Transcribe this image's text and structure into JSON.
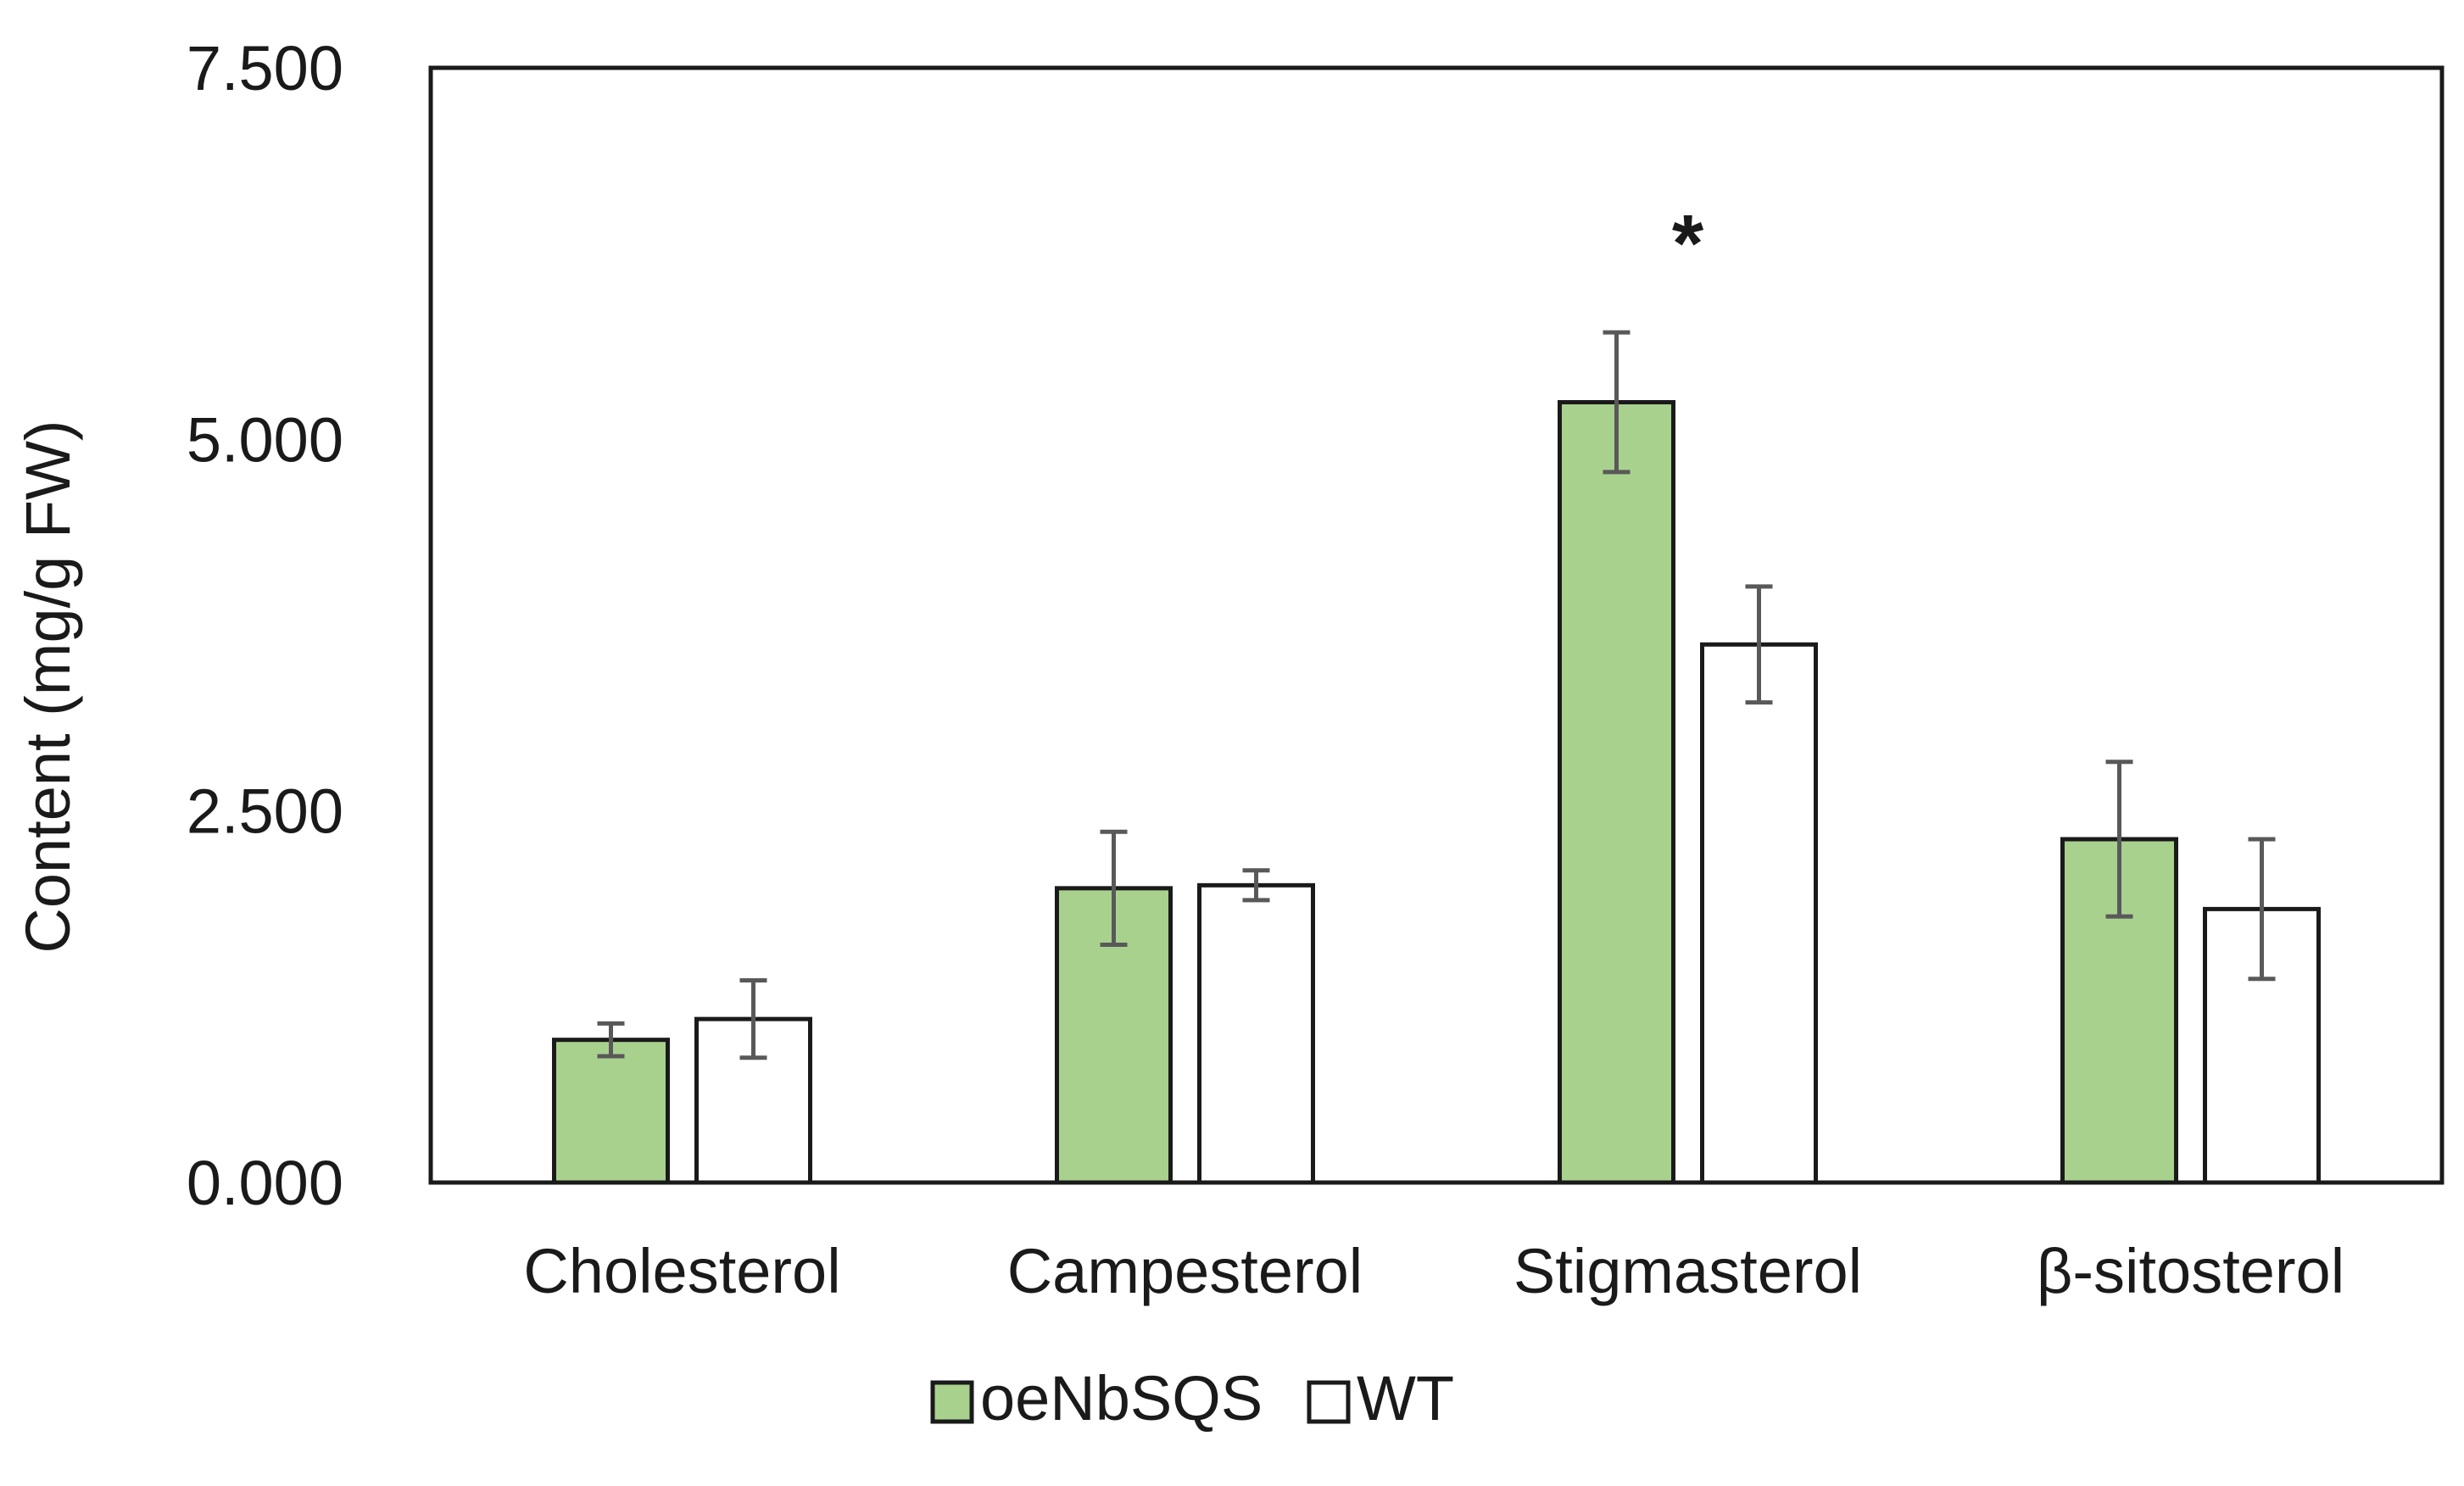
{
  "chart_data": {
    "type": "bar",
    "title": "",
    "xlabel": "",
    "ylabel": "Content (mg/g FW)",
    "ylim": [
      0,
      7.5
    ],
    "yticks": [
      0,
      2.5,
      5,
      7.5
    ],
    "ytick_labels": [
      "0.000",
      "2.500",
      "5.000",
      "7.500"
    ],
    "categories": [
      "Cholesterol",
      "Campesterol",
      "Stigmasterol",
      "β-sitosterol"
    ],
    "series": [
      {
        "name": "oeNbSQS",
        "color": "#a9d18e",
        "values": [
          0.96,
          1.98,
          5.25,
          2.31
        ],
        "errors": [
          0.11,
          0.38,
          0.47,
          0.52
        ]
      },
      {
        "name": "WT",
        "color": "#ffffff",
        "values": [
          1.1,
          2.0,
          3.62,
          1.84
        ],
        "errors": [
          0.26,
          0.1,
          0.39,
          0.47
        ]
      }
    ],
    "annotations": [
      {
        "category": "Stigmasterol",
        "text": "*"
      }
    ],
    "legend_position": "bottom-center",
    "grid": false
  }
}
